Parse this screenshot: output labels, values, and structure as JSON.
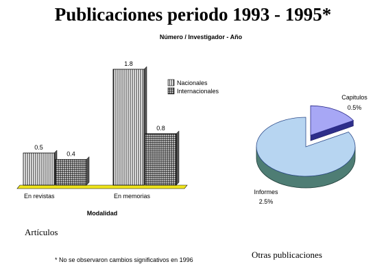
{
  "title": "Publicaciones periodo 1993 - 1995*",
  "subtitle": "Número / Investigador - Año",
  "footnote": "* No se observaron cambios significativos en 1996",
  "colors": {
    "pie_informes": "#b7d5f1",
    "pie_informes_side": "#4e7d74",
    "pie_capitulos": "#a7a7f5",
    "pie_capitulos_side": "#2e2e8a",
    "floor": "#f0e51c"
  },
  "chart_data": [
    {
      "type": "bar",
      "caption": "Artículos",
      "xlabel": "Modalidad",
      "categories": [
        "En revistas",
        "En memorias"
      ],
      "series": [
        {
          "name": "Nacionales",
          "pattern": "vertical-lines",
          "values": [
            0.5,
            1.8
          ]
        },
        {
          "name": "Internacionales",
          "pattern": "grid",
          "values": [
            0.4,
            0.8
          ]
        }
      ],
      "ylim": [
        0,
        1.8
      ],
      "legend": "top-right",
      "grid": false
    },
    {
      "type": "pie",
      "caption": "Otras publicaciones",
      "slices": [
        {
          "label": "Capitulos",
          "value": 0.5,
          "value_label": "0.5%"
        },
        {
          "label": "Informes",
          "value": 2.5,
          "value_label": "2.5%"
        }
      ]
    }
  ]
}
